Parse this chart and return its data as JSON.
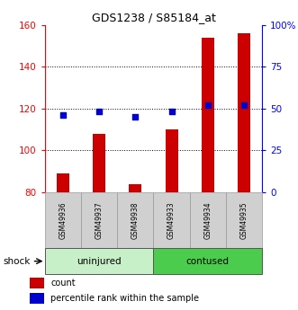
{
  "title": "GDS1238 / S85184_at",
  "samples": [
    "GSM49936",
    "GSM49937",
    "GSM49938",
    "GSM49933",
    "GSM49934",
    "GSM49935"
  ],
  "group_labels": [
    "uninjured",
    "contused"
  ],
  "bar_values": [
    89,
    108,
    84,
    110,
    154,
    156
  ],
  "dot_values": [
    46,
    48,
    45,
    48,
    52,
    52
  ],
  "ylim_left": [
    80,
    160
  ],
  "ylim_right": [
    0,
    100
  ],
  "yticks_left": [
    80,
    100,
    120,
    140,
    160
  ],
  "yticks_right": [
    0,
    25,
    50,
    75,
    100
  ],
  "ytick_right_labels": [
    "0",
    "25",
    "50",
    "75",
    "100%"
  ],
  "bar_color": "#CC0000",
  "dot_color": "#0000CC",
  "bar_width": 0.35,
  "shock_label": "shock",
  "legend_count": "count",
  "legend_pct": "percentile rank within the sample",
  "sample_bg": "#d0d0d0",
  "uninjured_bg": "#c8f0c8",
  "contused_bg": "#4ccc4c",
  "grid_color": "#000000"
}
